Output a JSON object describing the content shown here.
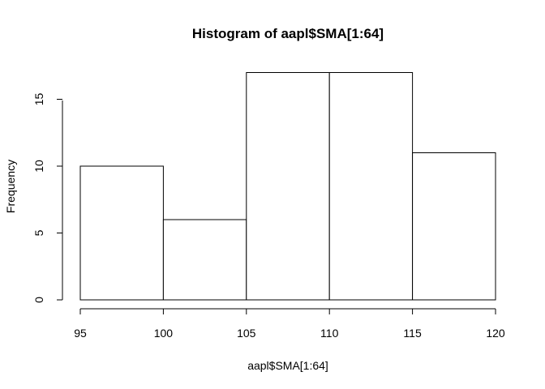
{
  "chart_data": {
    "type": "bar",
    "title": "Histogram of aapl$SMA[1:64]",
    "xlabel": "aapl$SMA[1:64]",
    "ylabel": "Frequency",
    "bins": [
      {
        "start": 95,
        "end": 100,
        "count": 10
      },
      {
        "start": 100,
        "end": 105,
        "count": 6
      },
      {
        "start": 105,
        "end": 110,
        "count": 17
      },
      {
        "start": 110,
        "end": 115,
        "count": 17
      },
      {
        "start": 115,
        "end": 120,
        "count": 11
      }
    ],
    "xticks": [
      "95",
      "100",
      "105",
      "110",
      "115",
      "120"
    ],
    "yticks": [
      "0",
      "5",
      "10",
      "15"
    ],
    "xlim": [
      95,
      120
    ],
    "ylim": [
      0,
      17
    ],
    "grid": false,
    "bar_fill": "#ffffff",
    "bar_stroke": "#000000"
  }
}
